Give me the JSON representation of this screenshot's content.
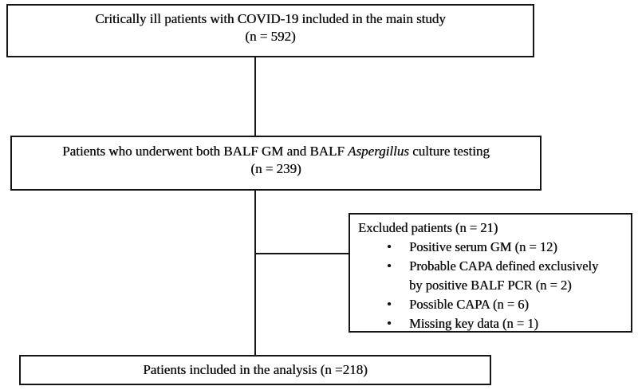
{
  "diagram": {
    "type": "patient-flowchart",
    "background_color": "#ffffff",
    "line_color": "#151515",
    "bullet": "•",
    "nodes": {
      "main_study": {
        "line1": "Critically ill patients with COVID-19 included in the main study",
        "line2": "(n = 592)"
      },
      "balf_testing": {
        "line1_prefix": "Patients who underwent both BALF GM and BALF ",
        "line1_italic": "Aspergillus",
        "line1_suffix": " culture testing",
        "line2": "(n = 239)"
      },
      "excluded": {
        "title": "Excluded patients (n = 21)",
        "items": [
          {
            "lines": [
              "Positive serum GM (n = 12)"
            ]
          },
          {
            "lines": [
              "Probable CAPA defined exclusively",
              "by positive BALF PCR (n = 2)"
            ]
          },
          {
            "lines": [
              "Possible CAPA (n = 6)"
            ]
          },
          {
            "lines": [
              "Missing key data (n = 1)"
            ]
          }
        ]
      },
      "analysis": {
        "line1": "Patients included in the analysis (n =218)"
      }
    }
  }
}
